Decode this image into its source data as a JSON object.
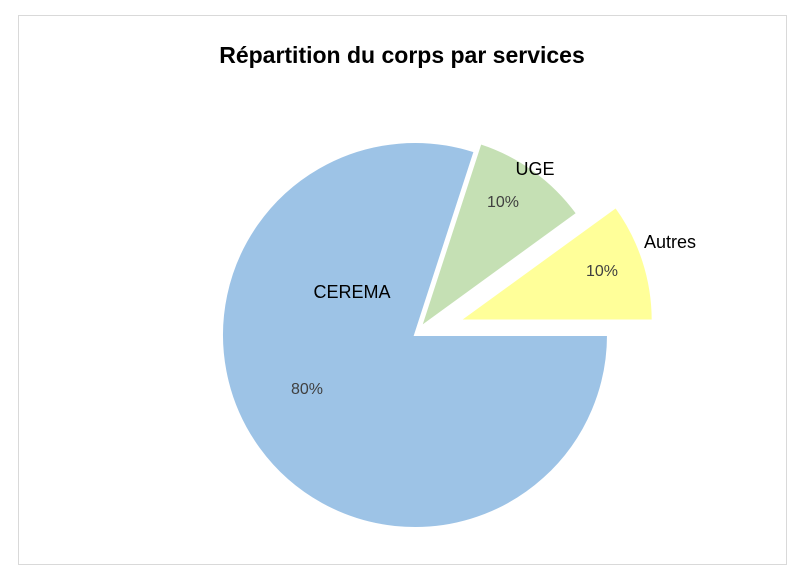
{
  "chart_data": {
    "type": "pie",
    "title": "Répartition du corps par services",
    "categories": [
      "CEREMA",
      "UGE",
      "Autres"
    ],
    "values": [
      80,
      10,
      10
    ],
    "value_labels": [
      "80%",
      "10%",
      "10%"
    ],
    "colors": [
      "#9dc3e6",
      "#c5e0b4",
      "#ffff99"
    ]
  }
}
